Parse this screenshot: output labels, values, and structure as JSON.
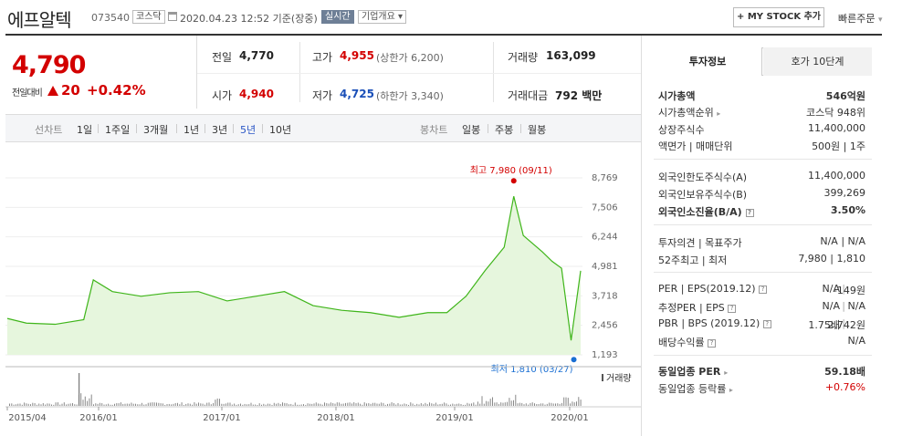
{
  "header": {
    "name": "에프알텍",
    "code": "073540",
    "market": "코스닥",
    "datetime": "2020.04.23 12:52 기준(장중)",
    "realtime": "실시간",
    "corp_info": "기업개요",
    "mystock": "+ MY STOCK 추가",
    "buy": "빠른주문"
  },
  "price": {
    "current": "4,790",
    "change_label": "전일대비",
    "change": "20",
    "pct": "+0.42%"
  },
  "quote": {
    "prev_label": "전일",
    "prev": "4,770",
    "high_label": "고가",
    "high": "4,955",
    "upper": "(상한가 6,200)",
    "vol_label": "거래량",
    "vol": "163,099",
    "open_label": "시가",
    "open": "4,940",
    "low_label": "저가",
    "low": "4,725",
    "lower": "(하한가 3,340)",
    "amt_label": "거래대금",
    "amt": "792 백만"
  },
  "period": {
    "line_label": "선차트",
    "line_items": [
      "1일",
      "1주일",
      "3개월",
      "1년",
      "3년",
      "5년",
      "10년"
    ],
    "selected": "5년",
    "candle_label": "봉차트",
    "candle_items": [
      "일봉",
      "주봉",
      "월봉"
    ]
  },
  "chart_data": {
    "type": "line",
    "y_ticks": [
      "8,769",
      "7,506",
      "6,244",
      "4,981",
      "3,718",
      "2,456",
      "1,193"
    ],
    "x_ticks": [
      "2015/04",
      "2016/01",
      "2017/01",
      "2018/01",
      "2019/01",
      "2020/01"
    ],
    "high_label": "최고 7,980 (09/11)",
    "low_label": "최저 1,810 (03/27)",
    "volume_label": "거래량",
    "ylim": [
      1193,
      8769
    ],
    "colors": {
      "line": "#3fb51a",
      "fill": "#e6f6dd",
      "high": "#d30000",
      "low": "#1a6fd3"
    },
    "x": [
      "2015/04",
      "2015/06",
      "2015/09",
      "2015/12",
      "2016/01",
      "2016/03",
      "2016/06",
      "2016/09",
      "2016/12",
      "2017/03",
      "2017/06",
      "2017/09",
      "2017/12",
      "2018/03",
      "2018/06",
      "2018/09",
      "2018/12",
      "2019/02",
      "2019/04",
      "2019/06",
      "2019/08",
      "2019/09",
      "2019/10",
      "2019/12",
      "2020/01",
      "2020/02",
      "2020/03",
      "2020/04"
    ],
    "values": [
      2750,
      2550,
      2500,
      2700,
      4400,
      3900,
      3700,
      3850,
      3900,
      3500,
      3700,
      3900,
      3300,
      3100,
      3000,
      2800,
      3000,
      3000,
      3700,
      4800,
      5800,
      7980,
      6300,
      5600,
      5200,
      4900,
      1810,
      4790
    ]
  },
  "info": {
    "tab1": "투자정보",
    "tab2": "호가 10단계",
    "rows1": [
      {
        "label": "시가총액",
        "value": "546억원"
      },
      {
        "label": "시가총액순위",
        "value": "코스닥 948위"
      },
      {
        "label": "상장주식수",
        "value": "11,400,000"
      },
      {
        "label": "액면가 | 매매단위",
        "value": "500원 | 1주"
      }
    ],
    "rows2": [
      {
        "label": "외국인한도주식수(A)",
        "value": "11,400,000"
      },
      {
        "label": "외국인보유주식수(B)",
        "value": "399,269"
      },
      {
        "label": "외국인소진율(B/A)",
        "value": "3.50%"
      }
    ],
    "rows3": [
      {
        "label": "투자의견 | 목표주가",
        "value": "N/A | N/A"
      },
      {
        "label": "52주최고 | 최저",
        "value": "7,980 | 1,810"
      }
    ],
    "rows4": [
      {
        "label": "PER | EPS(2019.12)",
        "v1": "N/A",
        "v2": "-149원"
      },
      {
        "label": "추정PER | EPS",
        "v1": "N/A",
        "v2": "N/A"
      },
      {
        "label": "PBR | BPS (2019.12)",
        "v1": "1.75배",
        "v2": "2,742원"
      },
      {
        "label": "배당수익률",
        "v1": "",
        "v2": "N/A"
      }
    ],
    "rows5": [
      {
        "label": "동일업종 PER",
        "value": "59.18배"
      },
      {
        "label": "동일업종 등락률",
        "value": "+0.76%"
      }
    ]
  }
}
